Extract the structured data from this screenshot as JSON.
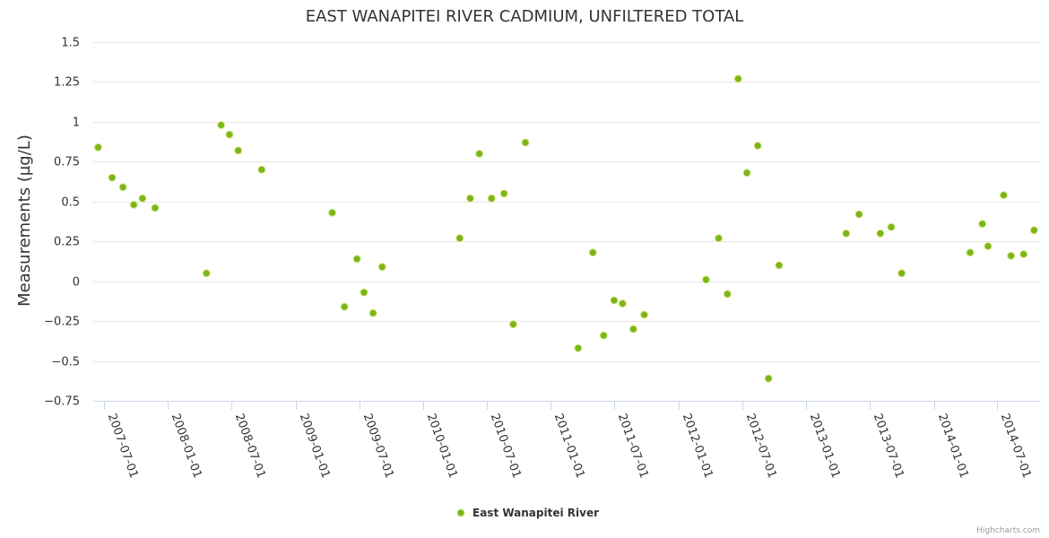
{
  "chart_data": {
    "type": "scatter",
    "title": "EAST WANAPITEI RIVER CADMIUM, UNFILTERED TOTAL",
    "ylabel": "Measurements (µg/L)",
    "xlabel": "",
    "ylim": [
      -0.75,
      1.5
    ],
    "yticks": [
      1.5,
      1.25,
      1,
      0.75,
      0.5,
      0.25,
      0,
      -0.25,
      -0.5,
      -0.75
    ],
    "ytick_labels": [
      "1.5",
      "1.25",
      "1",
      "0.75",
      "0.5",
      "0.25",
      "0",
      "−0.25",
      "−0.5",
      "−0.75"
    ],
    "xlim": [
      "2007-06-01",
      "2014-11-01"
    ],
    "xticks": [
      "2007-07-01",
      "2008-01-01",
      "2008-07-01",
      "2009-01-01",
      "2009-07-01",
      "2010-01-01",
      "2010-07-01",
      "2011-01-01",
      "2011-07-01",
      "2012-01-01",
      "2012-07-01",
      "2013-01-01",
      "2013-07-01",
      "2014-01-01",
      "2014-07-01"
    ],
    "xtick_labels": [
      "2007-07-01",
      "2008-01-01",
      "2008-07-01",
      "2009-01-01",
      "2009-07-01",
      "2010-01-01",
      "2010-07-01",
      "2011-01-01",
      "2011-07-01",
      "2012-01-01",
      "2012-07-01",
      "2013-01-01",
      "2013-07-01",
      "2014-01-01",
      "2014-07-01"
    ],
    "grid": true,
    "legend_position": "bottom-center",
    "series": [
      {
        "name": "East Wanapitei River",
        "color": "#7cb518",
        "points": [
          [
            "2007-06-15",
            0.84
          ],
          [
            "2007-07-25",
            0.65
          ],
          [
            "2007-08-25",
            0.59
          ],
          [
            "2007-09-25",
            0.48
          ],
          [
            "2007-10-20",
            0.52
          ],
          [
            "2007-11-25",
            0.46
          ],
          [
            "2008-04-20",
            0.05
          ],
          [
            "2008-06-01",
            0.98
          ],
          [
            "2008-06-25",
            0.92
          ],
          [
            "2008-07-20",
            0.82
          ],
          [
            "2008-09-25",
            0.7
          ],
          [
            "2009-04-15",
            0.43
          ],
          [
            "2009-05-20",
            -0.16
          ],
          [
            "2009-06-25",
            0.14
          ],
          [
            "2009-07-15",
            -0.07
          ],
          [
            "2009-08-10",
            -0.2
          ],
          [
            "2009-09-05",
            0.09
          ],
          [
            "2010-04-15",
            0.27
          ],
          [
            "2010-05-15",
            0.52
          ],
          [
            "2010-06-10",
            0.8
          ],
          [
            "2010-07-15",
            0.52
          ],
          [
            "2010-08-20",
            0.55
          ],
          [
            "2010-09-15",
            -0.27
          ],
          [
            "2010-10-20",
            0.87
          ],
          [
            "2011-03-20",
            -0.42
          ],
          [
            "2011-05-01",
            0.18
          ],
          [
            "2011-06-01",
            -0.34
          ],
          [
            "2011-07-01",
            -0.12
          ],
          [
            "2011-07-25",
            -0.14
          ],
          [
            "2011-08-25",
            -0.3
          ],
          [
            "2011-09-25",
            -0.21
          ],
          [
            "2012-03-20",
            0.01
          ],
          [
            "2012-04-25",
            0.27
          ],
          [
            "2012-05-20",
            -0.08
          ],
          [
            "2012-06-20",
            1.27
          ],
          [
            "2012-07-15",
            0.68
          ],
          [
            "2012-08-15",
            0.85
          ],
          [
            "2012-09-15",
            -0.61
          ],
          [
            "2012-10-15",
            0.1
          ],
          [
            "2013-04-25",
            0.3
          ],
          [
            "2013-06-01",
            0.42
          ],
          [
            "2013-08-01",
            0.3
          ],
          [
            "2013-09-01",
            0.34
          ],
          [
            "2013-10-01",
            0.05
          ],
          [
            "2014-04-15",
            0.18
          ],
          [
            "2014-05-20",
            0.36
          ],
          [
            "2014-06-05",
            0.22
          ],
          [
            "2014-07-20",
            0.54
          ],
          [
            "2014-08-10",
            0.16
          ],
          [
            "2014-09-15",
            0.17
          ],
          [
            "2014-10-15",
            0.32
          ]
        ]
      }
    ]
  },
  "credit": "Highcharts.com"
}
